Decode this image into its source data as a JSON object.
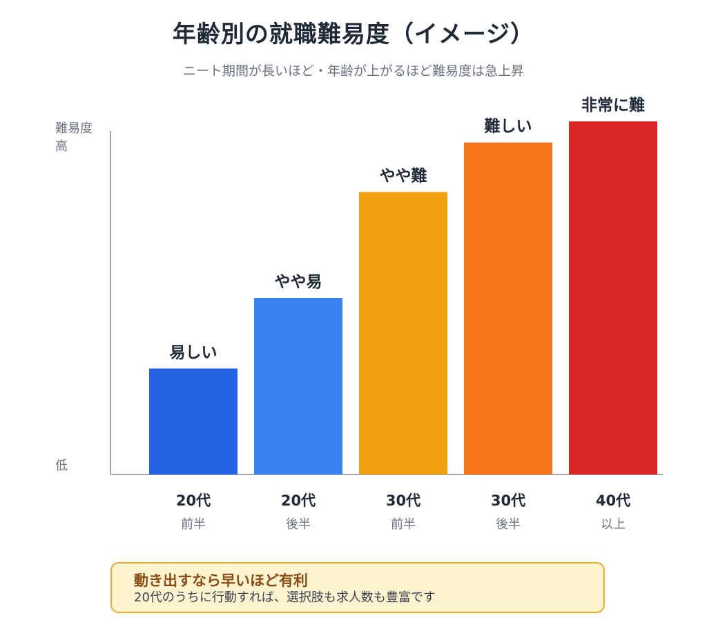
{
  "header": {
    "title": "年齢別の就職難易度（イメージ）",
    "subtitle": "ニート期間が長いほど・年齢が上がるほど難易度は急上昇"
  },
  "chart_data": {
    "type": "bar",
    "categories": [
      {
        "line1": "20代",
        "line2": "前半"
      },
      {
        "line1": "20代",
        "line2": "後半"
      },
      {
        "line1": "30代",
        "line2": "前半"
      },
      {
        "line1": "30代",
        "line2": "後半"
      },
      {
        "line1": "40代",
        "line2": "以上"
      }
    ],
    "values": [
      30,
      50,
      80,
      94,
      100
    ],
    "value_labels": [
      "易しい",
      "やや易",
      "やや難",
      "難しい",
      "非常に難"
    ],
    "colors": [
      "#2563e6",
      "#3b82f2",
      "#f0a012",
      "#f57418",
      "#dc2626"
    ],
    "ylabel_top": [
      "難易度",
      "高"
    ],
    "ylabel_bottom": "低",
    "ylim": [
      0,
      100
    ],
    "grid": false,
    "legend": "none"
  },
  "callout": {
    "title": "動き出すなら早いほど有利",
    "text": "20代のうちに行動すれば、選択肢も求人数も豊富です"
  },
  "colors": {
    "axis": "#9ca3af",
    "label_dark": "#1f2937",
    "label_muted": "#6b7280",
    "callout_bg": "#fdf3cf",
    "callout_border": "#f0a830"
  }
}
